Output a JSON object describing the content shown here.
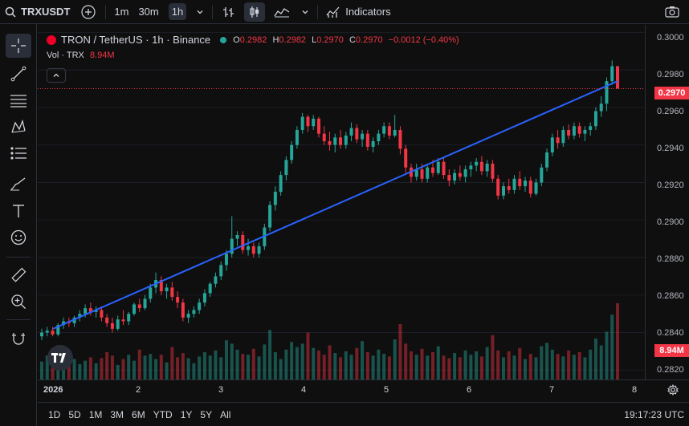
{
  "topbar": {
    "symbol": "TRXUSDT",
    "intervals": [
      "1m",
      "30m",
      "1h"
    ],
    "active_interval": "1h",
    "indicators_label": "Indicators"
  },
  "legend": {
    "title": "TRON / TetherUS · 1h · Binance",
    "open_label": "O",
    "open": "0.2982",
    "high_label": "H",
    "high": "0.2982",
    "low_label": "L",
    "low": "0.2970",
    "close_label": "C",
    "close": "0.2970",
    "change": "−0.0012 (−0.40%)",
    "vol_label": "Vol · TRX",
    "vol_value": "8.94M"
  },
  "price_axis": {
    "labels": [
      "0.3000",
      "0.2980",
      "0.2960",
      "0.2940",
      "0.2920",
      "0.2900",
      "0.2880",
      "0.2860",
      "0.2840",
      "0.2820"
    ],
    "current_price": "0.2970",
    "current_volume": "8.94M"
  },
  "time_axis": {
    "labels": [
      "2026",
      "2",
      "3",
      "4",
      "5",
      "6",
      "7",
      "8"
    ]
  },
  "bottom": {
    "ranges": [
      "1D",
      "5D",
      "1M",
      "3M",
      "6M",
      "YTD",
      "1Y",
      "5Y",
      "All"
    ],
    "clock": "19:17:23 UTC"
  },
  "colors": {
    "up": "#26a69a",
    "down": "#f23645",
    "trendline": "#2962ff",
    "background": "#0f0f0f"
  },
  "chart_data": {
    "type": "candlestick",
    "symbol": "TRXUSDT",
    "interval": "1h",
    "ylim": [
      0.2815,
      0.3004
    ],
    "ohlc": [
      [
        0.2838,
        0.2842,
        0.2836,
        0.284
      ],
      [
        0.284,
        0.2843,
        0.2838,
        0.2841
      ],
      [
        0.2841,
        0.2843,
        0.2838,
        0.2839
      ],
      [
        0.2839,
        0.2845,
        0.2838,
        0.2844
      ],
      [
        0.2844,
        0.2848,
        0.2842,
        0.2846
      ],
      [
        0.2846,
        0.2848,
        0.2843,
        0.2845
      ],
      [
        0.2845,
        0.2849,
        0.2843,
        0.2848
      ],
      [
        0.2848,
        0.2852,
        0.2846,
        0.285
      ],
      [
        0.285,
        0.2855,
        0.2848,
        0.2853
      ],
      [
        0.2853,
        0.2856,
        0.2849,
        0.2851
      ],
      [
        0.2851,
        0.2854,
        0.2848,
        0.2852
      ],
      [
        0.2852,
        0.2854,
        0.2846,
        0.2848
      ],
      [
        0.2848,
        0.285,
        0.2843,
        0.2845
      ],
      [
        0.2845,
        0.2848,
        0.284,
        0.2842
      ],
      [
        0.2842,
        0.2849,
        0.2841,
        0.2847
      ],
      [
        0.2847,
        0.2852,
        0.2844,
        0.2846
      ],
      [
        0.2846,
        0.2851,
        0.2844,
        0.285
      ],
      [
        0.285,
        0.2856,
        0.2849,
        0.2855
      ],
      [
        0.2855,
        0.2858,
        0.2851,
        0.2853
      ],
      [
        0.2853,
        0.286,
        0.2852,
        0.2858
      ],
      [
        0.2858,
        0.2866,
        0.2856,
        0.2864
      ],
      [
        0.2864,
        0.2872,
        0.2861,
        0.2868
      ],
      [
        0.2868,
        0.287,
        0.286,
        0.2862
      ],
      [
        0.2862,
        0.2866,
        0.2858,
        0.2864
      ],
      [
        0.2864,
        0.2867,
        0.2857,
        0.2859
      ],
      [
        0.2859,
        0.2862,
        0.2853,
        0.2856
      ],
      [
        0.2856,
        0.2858,
        0.2846,
        0.2848
      ],
      [
        0.2848,
        0.2852,
        0.2845,
        0.285
      ],
      [
        0.285,
        0.2854,
        0.2848,
        0.2852
      ],
      [
        0.2852,
        0.2858,
        0.285,
        0.2856
      ],
      [
        0.2856,
        0.2863,
        0.2854,
        0.2861
      ],
      [
        0.2861,
        0.2867,
        0.2859,
        0.2866
      ],
      [
        0.2866,
        0.2872,
        0.2864,
        0.287
      ],
      [
        0.287,
        0.2878,
        0.2868,
        0.2876
      ],
      [
        0.2876,
        0.2884,
        0.2873,
        0.2882
      ],
      [
        0.2882,
        0.2902,
        0.288,
        0.289
      ],
      [
        0.289,
        0.2894,
        0.2886,
        0.2892
      ],
      [
        0.2892,
        0.2894,
        0.2882,
        0.2884
      ],
      [
        0.2884,
        0.289,
        0.2881,
        0.2886
      ],
      [
        0.2886,
        0.2888,
        0.288,
        0.2882
      ],
      [
        0.2882,
        0.2888,
        0.288,
        0.2886
      ],
      [
        0.2886,
        0.2898,
        0.2884,
        0.2896
      ],
      [
        0.2896,
        0.291,
        0.2894,
        0.2908
      ],
      [
        0.2908,
        0.2918,
        0.2905,
        0.2915
      ],
      [
        0.2915,
        0.2926,
        0.2913,
        0.2924
      ],
      [
        0.2924,
        0.2934,
        0.2921,
        0.2932
      ],
      [
        0.2932,
        0.2942,
        0.293,
        0.294
      ],
      [
        0.294,
        0.295,
        0.2938,
        0.2948
      ],
      [
        0.2948,
        0.2957,
        0.2946,
        0.2955
      ],
      [
        0.2955,
        0.2956,
        0.2947,
        0.295
      ],
      [
        0.295,
        0.2956,
        0.2948,
        0.2954
      ],
      [
        0.2954,
        0.2955,
        0.2944,
        0.2946
      ],
      [
        0.2946,
        0.295,
        0.294,
        0.2942
      ],
      [
        0.2942,
        0.2947,
        0.2937,
        0.294
      ],
      [
        0.294,
        0.2946,
        0.2936,
        0.2944
      ],
      [
        0.2944,
        0.2948,
        0.2938,
        0.294
      ],
      [
        0.294,
        0.2947,
        0.2938,
        0.2945
      ],
      [
        0.2945,
        0.2952,
        0.2942,
        0.2949
      ],
      [
        0.2949,
        0.2951,
        0.2941,
        0.2943
      ],
      [
        0.2943,
        0.2948,
        0.2939,
        0.2946
      ],
      [
        0.2946,
        0.2948,
        0.2937,
        0.2939
      ],
      [
        0.2939,
        0.2944,
        0.2936,
        0.2942
      ],
      [
        0.2942,
        0.2948,
        0.294,
        0.2946
      ],
      [
        0.2946,
        0.2952,
        0.2944,
        0.295
      ],
      [
        0.295,
        0.2952,
        0.2943,
        0.2945
      ],
      [
        0.2945,
        0.2956,
        0.2944,
        0.2948
      ],
      [
        0.2948,
        0.295,
        0.2935,
        0.2938
      ],
      [
        0.2938,
        0.294,
        0.2925,
        0.2928
      ],
      [
        0.2928,
        0.293,
        0.292,
        0.2923
      ],
      [
        0.2923,
        0.293,
        0.2921,
        0.2927
      ],
      [
        0.2927,
        0.293,
        0.292,
        0.2922
      ],
      [
        0.2922,
        0.2929,
        0.292,
        0.2928
      ],
      [
        0.2928,
        0.2932,
        0.2923,
        0.2925
      ],
      [
        0.2925,
        0.2933,
        0.2924,
        0.2931
      ],
      [
        0.2931,
        0.2933,
        0.2922,
        0.2924
      ],
      [
        0.2924,
        0.2927,
        0.2918,
        0.2921
      ],
      [
        0.2921,
        0.2927,
        0.2919,
        0.2925
      ],
      [
        0.2925,
        0.2929,
        0.2921,
        0.2923
      ],
      [
        0.2923,
        0.2929,
        0.292,
        0.2927
      ],
      [
        0.2927,
        0.2931,
        0.2923,
        0.2929
      ],
      [
        0.2929,
        0.2933,
        0.2926,
        0.2931
      ],
      [
        0.2931,
        0.2934,
        0.2924,
        0.2926
      ],
      [
        0.2926,
        0.2932,
        0.2923,
        0.293
      ],
      [
        0.293,
        0.2932,
        0.292,
        0.2922
      ],
      [
        0.2922,
        0.2924,
        0.2911,
        0.2913
      ],
      [
        0.2913,
        0.292,
        0.2911,
        0.2918
      ],
      [
        0.2918,
        0.2922,
        0.2914,
        0.2916
      ],
      [
        0.2916,
        0.2924,
        0.2914,
        0.2922
      ],
      [
        0.2922,
        0.2926,
        0.2916,
        0.2918
      ],
      [
        0.2918,
        0.2923,
        0.2915,
        0.2921
      ],
      [
        0.2921,
        0.2923,
        0.2912,
        0.2914
      ],
      [
        0.2914,
        0.2922,
        0.2913,
        0.292
      ],
      [
        0.292,
        0.293,
        0.2918,
        0.2928
      ],
      [
        0.2928,
        0.2938,
        0.2926,
        0.2936
      ],
      [
        0.2936,
        0.2946,
        0.2934,
        0.2944
      ],
      [
        0.2944,
        0.2948,
        0.2938,
        0.2941
      ],
      [
        0.2941,
        0.295,
        0.2939,
        0.2948
      ],
      [
        0.2948,
        0.2951,
        0.2943,
        0.2945
      ],
      [
        0.2945,
        0.2952,
        0.2943,
        0.295
      ],
      [
        0.295,
        0.2952,
        0.2944,
        0.2946
      ],
      [
        0.2946,
        0.295,
        0.2942,
        0.2948
      ],
      [
        0.2948,
        0.2952,
        0.2945,
        0.295
      ],
      [
        0.295,
        0.296,
        0.2948,
        0.2958
      ],
      [
        0.2958,
        0.2966,
        0.2955,
        0.2962
      ],
      [
        0.2962,
        0.2976,
        0.2958,
        0.2974
      ],
      [
        0.2974,
        0.2985,
        0.2972,
        0.2982
      ],
      [
        0.2982,
        0.2982,
        0.297,
        0.297
      ]
    ],
    "volume_millions": [
      2.1,
      2.8,
      2.2,
      1.6,
      2.0,
      3.1,
      2.4,
      1.8,
      2.2,
      2.6,
      1.9,
      2.5,
      3.2,
      2.8,
      1.7,
      2.4,
      2.9,
      2.2,
      3.5,
      2.8,
      3.0,
      2.4,
      2.9,
      2.0,
      3.8,
      2.6,
      3.1,
      2.5,
      1.9,
      2.7,
      3.2,
      2.8,
      3.4,
      2.6,
      4.6,
      4.2,
      3.5,
      3.0,
      2.9,
      3.6,
      2.7,
      4.1,
      5.8,
      3.2,
      2.4,
      3.5,
      4.4,
      3.8,
      4.2,
      5.5,
      3.7,
      3.4,
      2.9,
      4.0,
      3.1,
      2.6,
      3.3,
      2.9,
      3.7,
      4.5,
      3.2,
      2.8,
      3.5,
      3.0,
      2.7,
      4.7,
      6.5,
      4.2,
      3.3,
      2.9,
      3.6,
      2.8,
      3.2,
      3.9,
      2.8,
      2.5,
      3.1,
      2.6,
      3.4,
      2.9,
      3.3,
      2.7,
      3.8,
      5.2,
      3.4,
      2.6,
      3.3,
      2.8,
      3.7,
      2.4,
      3.0,
      2.6,
      3.9,
      4.3,
      3.5,
      3.0,
      2.7,
      3.4,
      2.9,
      3.2,
      2.6,
      3.5,
      4.8,
      4.0,
      5.6,
      7.6,
      8.94
    ],
    "trendline": {
      "start": 0.2842,
      "end": 0.2974
    },
    "x_ticks": [
      "2026",
      "2",
      "3",
      "4",
      "5",
      "6",
      "7",
      "8"
    ],
    "y_ticks": [
      "0.3000",
      "0.2980",
      "0.2960",
      "0.2940",
      "0.2920",
      "0.2900",
      "0.2880",
      "0.2860",
      "0.2840",
      "0.2820"
    ],
    "last_price": 0.297
  }
}
